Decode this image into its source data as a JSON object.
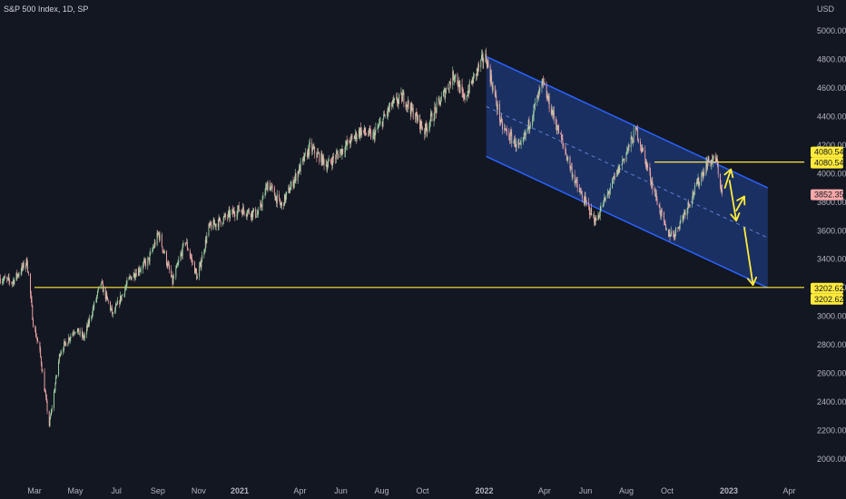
{
  "header": {
    "title": "S&P 500 Index, 1D, SP",
    "currency": "USD"
  },
  "price_tags": {
    "resistance_top": "4080.54",
    "resistance_bottom": "4080.54",
    "last_price": "3852.35",
    "support_top": "3202.62",
    "support_bottom": "3202.62"
  },
  "colors": {
    "background": "#131722",
    "up": "#a5d6a7",
    "down": "#f7a9a9",
    "channel_line": "#2962ff",
    "channel_fill": "#1f3a78",
    "level_line": "#ffeb3b",
    "arrow": "#ffeb3b",
    "last_price_bg": "#f7a9a9",
    "axis_text": "#b2b5be"
  },
  "chart_data": {
    "type": "candlestick",
    "title": "S&P 500 Index, 1D, SP",
    "ylabel": "USD",
    "ylim": [
      1950,
      5100
    ],
    "y_ticks": [
      2000,
      2200,
      2400,
      2600,
      2800,
      3000,
      3200,
      3400,
      3600,
      3800,
      4000,
      4200,
      4400,
      4600,
      4800,
      5000
    ],
    "y_tick_labels": [
      "2000.00",
      "2200.00",
      "2400.00",
      "2600.00",
      "2800.00",
      "3000.00",
      "3200.00",
      "3400.00",
      "3600.00",
      "3800.00",
      "4000.00",
      "4200.00",
      "4400.00",
      "4600.00",
      "4800.00",
      "5000.00"
    ],
    "x_ticks": [
      {
        "label": "Mar",
        "date": "2020-03-01",
        "bold": false
      },
      {
        "label": "May",
        "date": "2020-05-01",
        "bold": false
      },
      {
        "label": "Jul",
        "date": "2020-07-01",
        "bold": false
      },
      {
        "label": "Sep",
        "date": "2020-09-01",
        "bold": false
      },
      {
        "label": "Nov",
        "date": "2020-11-01",
        "bold": false
      },
      {
        "label": "2021",
        "date": "2021-01-01",
        "bold": true
      },
      {
        "label": "Apr",
        "date": "2021-04-01",
        "bold": false
      },
      {
        "label": "Jun",
        "date": "2021-06-01",
        "bold": false
      },
      {
        "label": "Aug",
        "date": "2021-08-01",
        "bold": false
      },
      {
        "label": "Oct",
        "date": "2021-10-01",
        "bold": false
      },
      {
        "label": "2022",
        "date": "2022-01-01",
        "bold": true
      },
      {
        "label": "Apr",
        "date": "2022-04-01",
        "bold": false
      },
      {
        "label": "Jun",
        "date": "2022-06-01",
        "bold": false
      },
      {
        "label": "Aug",
        "date": "2022-08-01",
        "bold": false
      },
      {
        "label": "Oct",
        "date": "2022-10-01",
        "bold": false
      },
      {
        "label": "2023",
        "date": "2023-01-01",
        "bold": true
      },
      {
        "label": "Apr",
        "date": "2023-04-01",
        "bold": false
      }
    ],
    "price_path": [
      [
        "2020-01-10",
        3265
      ],
      [
        "2020-01-28",
        3240
      ],
      [
        "2020-02-19",
        3386
      ],
      [
        "2020-02-28",
        2955
      ],
      [
        "2020-03-09",
        2750
      ],
      [
        "2020-03-23",
        2237
      ],
      [
        "2020-04-08",
        2750
      ],
      [
        "2020-04-30",
        2910
      ],
      [
        "2020-05-14",
        2850
      ],
      [
        "2020-06-08",
        3230
      ],
      [
        "2020-06-26",
        3010
      ],
      [
        "2020-07-22",
        3275
      ],
      [
        "2020-08-18",
        3390
      ],
      [
        "2020-09-02",
        3580
      ],
      [
        "2020-09-23",
        3240
      ],
      [
        "2020-10-12",
        3530
      ],
      [
        "2020-10-30",
        3270
      ],
      [
        "2020-11-16",
        3620
      ],
      [
        "2020-12-31",
        3750
      ],
      [
        "2021-01-29",
        3715
      ],
      [
        "2021-02-12",
        3935
      ],
      [
        "2021-03-04",
        3770
      ],
      [
        "2021-04-16",
        4185
      ],
      [
        "2021-05-12",
        4060
      ],
      [
        "2021-06-30",
        4300
      ],
      [
        "2021-07-19",
        4260
      ],
      [
        "2021-08-16",
        4480
      ],
      [
        "2021-09-02",
        4537
      ],
      [
        "2021-10-04",
        4300
      ],
      [
        "2021-11-18",
        4705
      ],
      [
        "2021-12-01",
        4515
      ],
      [
        "2021-12-29",
        4795
      ],
      [
        "2022-01-04",
        4810
      ],
      [
        "2022-01-27",
        4330
      ],
      [
        "2022-02-24",
        4170
      ],
      [
        "2022-03-29",
        4630
      ],
      [
        "2022-05-20",
        3900
      ],
      [
        "2022-06-16",
        3667
      ],
      [
        "2022-08-16",
        4305
      ],
      [
        "2022-09-30",
        3585
      ],
      [
        "2022-10-12",
        3577
      ],
      [
        "2022-11-30",
        4080
      ],
      [
        "2022-12-13",
        4100
      ],
      [
        "2022-12-22",
        3852
      ]
    ],
    "last_price": 3852.35,
    "horizontal_levels": [
      {
        "name": "resistance",
        "value": 4080.54,
        "start": "2022-09-12"
      },
      {
        "name": "support",
        "value": 3202.62,
        "start": "2020-03-01"
      }
    ],
    "channel": {
      "upper": [
        [
          "2022-01-04",
          4820
        ],
        [
          "2023-02-28",
          3900
        ]
      ],
      "lower": [
        [
          "2022-01-04",
          4120
        ],
        [
          "2023-02-28",
          3200
        ]
      ]
    },
    "projection_arrows": [
      [
        [
          "2022-12-26",
          3900
        ],
        [
          "2023-01-04",
          4030
        ]
      ],
      [
        [
          "2023-01-02",
          3950
        ],
        [
          "2023-01-12",
          3670
        ]
      ],
      [
        [
          "2023-01-12",
          3740
        ],
        [
          "2023-01-24",
          3840
        ]
      ],
      [
        [
          "2023-01-24",
          3620
        ],
        [
          "2023-02-06",
          3220
        ]
      ]
    ],
    "x_range": [
      "2020-01-02",
      "2023-04-25"
    ]
  }
}
